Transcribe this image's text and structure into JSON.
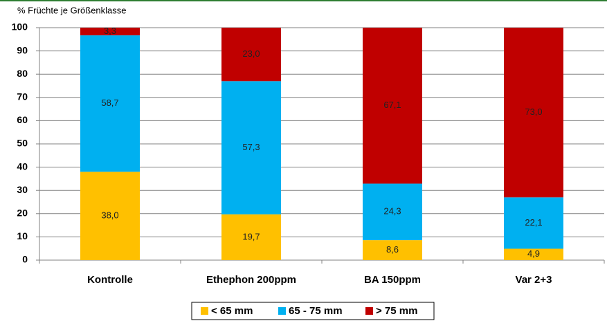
{
  "chart_data": {
    "type": "stacked-bar",
    "title": "% Früchte je Größenklasse",
    "categories": [
      "Kontrolle",
      "Ethephon 200ppm",
      "BA 150ppm",
      "Var 2+3"
    ],
    "series": [
      {
        "name": "< 65 mm",
        "color": "#FFC000",
        "values": [
          38.0,
          19.7,
          8.6,
          4.9
        ],
        "value_labels": [
          "38,0",
          "19,7",
          "8,6",
          "4,9"
        ]
      },
      {
        "name": "65 - 75 mm",
        "color": "#00B0F0",
        "values": [
          58.7,
          57.3,
          24.3,
          22.1
        ],
        "value_labels": [
          "58,7",
          "57,3",
          "24,3",
          "22,1"
        ]
      },
      {
        "name": "> 75 mm",
        "color": "#C00000",
        "values": [
          3.3,
          23.0,
          67.1,
          73.0
        ],
        "value_labels": [
          "3,3",
          "23,0",
          "67,1",
          "73,0"
        ]
      }
    ],
    "ylim": [
      0,
      100
    ],
    "yticks": [
      0,
      10,
      20,
      30,
      40,
      50,
      60,
      70,
      80,
      90,
      100
    ],
    "grid": true,
    "legend": "bottom"
  }
}
